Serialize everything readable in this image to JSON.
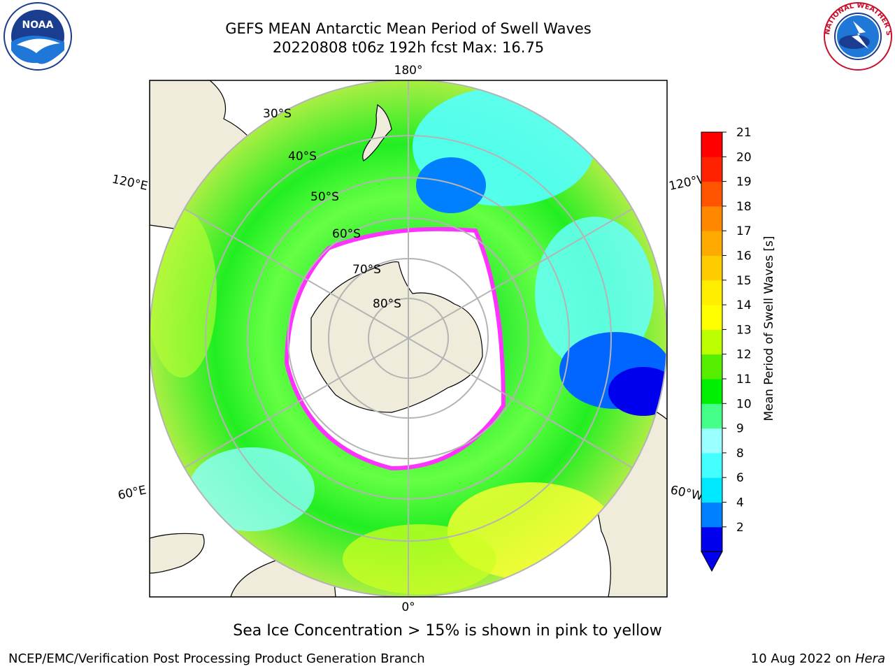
{
  "title": {
    "line1": "GEFS MEAN Antarctic Mean Period of Swell Waves",
    "line2": "20220808 t06z 192h fcst   Max: 16.75"
  },
  "logos": {
    "left": {
      "icon": "noaa-logo",
      "text": "NOAA"
    },
    "right": {
      "icon": "nws-logo",
      "text": "NATIONAL WEATHER SERVICE"
    }
  },
  "map": {
    "projection": "south-polar-stereographic",
    "lon_labels": {
      "top": "180°",
      "bottom": "0°",
      "left_upper": "120°E",
      "left_lower": "60°E",
      "right_upper": "120°W",
      "right_lower": "60°W"
    },
    "lat_labels": [
      "30°S",
      "40°S",
      "50°S",
      "60°S",
      "70°S",
      "80°S"
    ],
    "colors": {
      "land": "#efecdc",
      "ocean_mask": "#ffffff",
      "grid": "#b4b4b4",
      "coast": "#000000"
    }
  },
  "colorbar": {
    "label": "Mean Period of Swell Waves [s]",
    "ticks": [
      "21",
      "20",
      "19",
      "18",
      "17",
      "16",
      "15",
      "14",
      "13",
      "12",
      "11",
      "10",
      "9",
      "8",
      "6",
      "4",
      "2"
    ],
    "colors_bottom_to_top": [
      "#0000ee",
      "#0080ff",
      "#00e8ff",
      "#44ffff",
      "#99ffff",
      "#44ff88",
      "#00ee00",
      "#55ee00",
      "#bbff00",
      "#ffff00",
      "#ffee00",
      "#ffcc00",
      "#ffaa00",
      "#ff8800",
      "#ff5500",
      "#ff2200",
      "#ff0000"
    ],
    "extend": "min"
  },
  "note": "Sea Ice Concentration > 15% is shown in pink to yellow",
  "footer": {
    "left": "NCEP/EMC/Verification Post Processing Product Generation Branch",
    "right_prefix": "10 Aug 2022 on ",
    "right_machine": "Hera"
  }
}
